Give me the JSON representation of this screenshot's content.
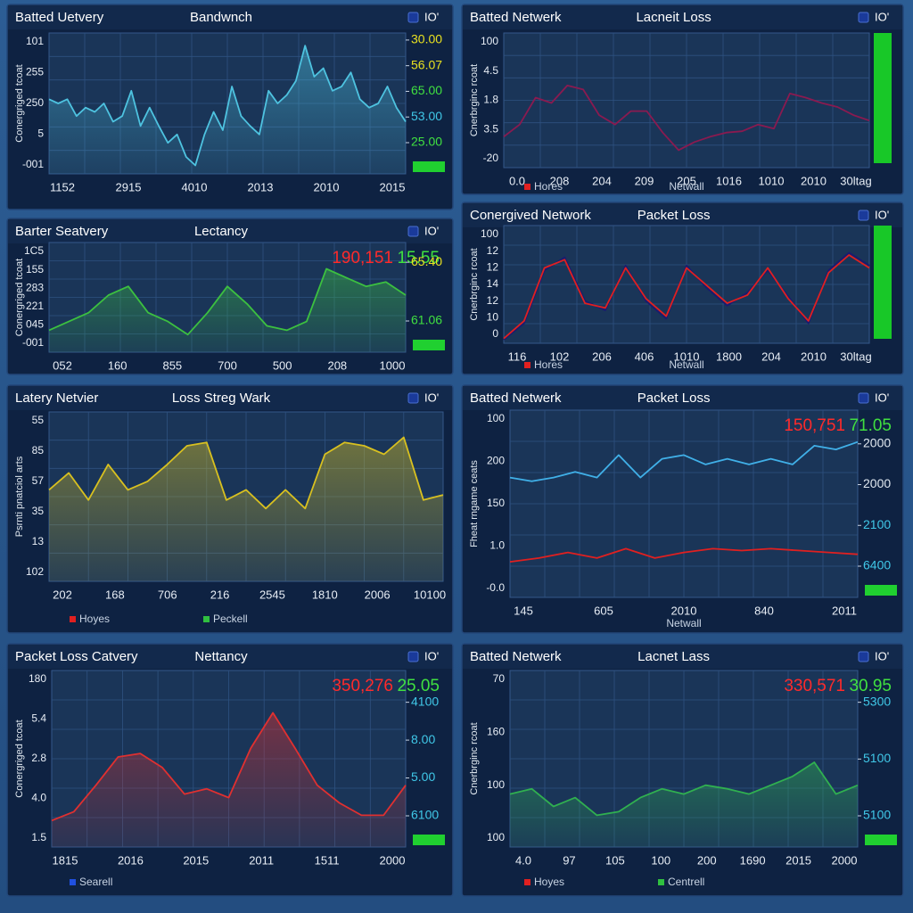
{
  "panels": [
    {
      "title": "Batted Uetvery",
      "subtitle": "Bandwnch",
      "icon": "IO'",
      "y_label": "Conergriged tcoat",
      "y_labels": [
        "101",
        "255",
        "250",
        "5",
        "-001"
      ],
      "x_labels": [
        "1152",
        "2915",
        "4010",
        "2013",
        "2010",
        "2015"
      ],
      "right_labels": [
        {
          "label": "30.00",
          "color": "#e8e020"
        },
        {
          "label": "56.07",
          "color": "#e8e020"
        },
        {
          "label": "65.00",
          "color": "#40e040"
        },
        {
          "label": "53.00",
          "color": "#40c8e8"
        },
        {
          "label": "25.00",
          "color": "#40e040"
        }
      ],
      "ylim": [
        0,
        100
      ],
      "series": [
        {
          "color": "#4ec3e0",
          "fill": true,
          "values": [
            53,
            50,
            53,
            41,
            47,
            44,
            50,
            37,
            41,
            59,
            34,
            47,
            34,
            22,
            28,
            12,
            6,
            28,
            44,
            31,
            62,
            41,
            34,
            28,
            59,
            50,
            56,
            66,
            91,
            69,
            75,
            59,
            62,
            72,
            53,
            47,
            50,
            62,
            47,
            37
          ]
        }
      ]
    },
    {
      "title": "Batted Netwerk",
      "subtitle": "Lacneit Loss",
      "icon": "IO'",
      "y_label": "Cnerbrginc rcoat",
      "y_labels": [
        "100",
        "4.5",
        "1.8",
        "3.5",
        "-20"
      ],
      "x_labels": [
        "0.0",
        "208",
        "204",
        "209",
        "205",
        "1016",
        "1010",
        "2010",
        "30ltag"
      ],
      "x_label": "Netwall",
      "legend": [
        {
          "name": "Hores",
          "color": "#e02020"
        }
      ],
      "ylim": [
        0,
        100
      ],
      "series": [
        {
          "color": "#8a1a50",
          "fill": false,
          "values": [
            23,
            32,
            52,
            48,
            61,
            58,
            39,
            32,
            42,
            42,
            26,
            13,
            19,
            23,
            26,
            27,
            32,
            29,
            55,
            52,
            48,
            45,
            39,
            35
          ]
        }
      ]
    },
    {
      "title": "Barter Seatvery",
      "subtitle": "Lectancy",
      "icon": "IO'",
      "y_label": "Conergriged tcoat",
      "y_labels": [
        "1C5",
        "155",
        "283",
        "221",
        "045",
        "-001"
      ],
      "x_labels": [
        "052",
        "160",
        "855",
        "700",
        "500",
        "208",
        "1000"
      ],
      "readouts": [
        {
          "label": "190,151",
          "color": "#ff2a2a"
        },
        {
          "label": "15.55",
          "color": "#40e040"
        }
      ],
      "right_labels": [
        {
          "label": "65.40",
          "color": "#e8e020"
        },
        {
          "label": "61.06",
          "color": "#40e040"
        }
      ],
      "ylim": [
        0,
        100
      ],
      "series": [
        {
          "color": "#3cc040",
          "fill": true,
          "values": [
            20,
            28,
            36,
            52,
            60,
            36,
            28,
            16,
            36,
            60,
            44,
            24,
            20,
            28,
            76,
            68,
            60,
            64,
            52
          ]
        }
      ]
    },
    {
      "title": "Conergived Network",
      "subtitle": "Packet Loss",
      "icon": "IO'",
      "y_label": "Cnerbrginc rcoat",
      "y_labels": [
        "100",
        "12",
        "12",
        "14",
        "12",
        "10",
        "0"
      ],
      "x_labels": [
        "116",
        "102",
        "206",
        "406",
        "1010",
        "1800",
        "204",
        "2010",
        "30ltag"
      ],
      "x_label": "Netwall",
      "legend": [
        {
          "name": "Hores",
          "color": "#e02020"
        }
      ],
      "ylim": [
        0,
        100
      ],
      "series": [
        {
          "color": "#1a1a70",
          "fill": false,
          "values": [
            3,
            17,
            62,
            73,
            36,
            28,
            66,
            36,
            21,
            66,
            47,
            32,
            43,
            62,
            40,
            17,
            62,
            77,
            66
          ]
        },
        {
          "color": "#e02020",
          "fill": false,
          "values": [
            4,
            19,
            64,
            71,
            34,
            30,
            64,
            38,
            23,
            64,
            49,
            34,
            41,
            64,
            38,
            19,
            60,
            75,
            64
          ]
        }
      ]
    },
    {
      "title": "Latery Netvier",
      "subtitle": "Loss Streg Wark",
      "icon": "IO'",
      "y_label": "Psrnti pnatciol arts",
      "y_labels": [
        "55",
        "85",
        "57",
        "35",
        "13",
        "102"
      ],
      "x_labels": [
        "202",
        "168",
        "706",
        "216",
        "2545",
        "1810",
        "2006",
        "10100"
      ],
      "legend": [
        {
          "name": "Hoyes",
          "color": "#e02020"
        },
        {
          "name": "Peckell",
          "color": "#30c040"
        }
      ],
      "ylim": [
        0,
        100
      ],
      "series": [
        {
          "color": "#d8c020",
          "fill": true,
          "values": [
            54,
            64,
            48,
            69,
            54,
            59,
            69,
            80,
            82,
            48,
            54,
            43,
            54,
            43,
            75,
            82,
            80,
            75,
            85,
            48,
            51
          ]
        }
      ]
    },
    {
      "title": "Batted Netwerk",
      "subtitle": "Packet Loss",
      "icon": "IO'",
      "y_label": "Fheat rngame ceats",
      "y_labels": [
        "100",
        "200",
        "150",
        "1.0",
        "-0.0"
      ],
      "x_labels": [
        "145",
        "605",
        "2010",
        "840",
        "2011"
      ],
      "x_label": "Netwall",
      "readouts": [
        {
          "label": "150,751",
          "color": "#ff2a2a"
        },
        {
          "label": "71.05",
          "color": "#40e040"
        }
      ],
      "right_labels": [
        {
          "label": "2000",
          "color": "#e0e8f0"
        },
        {
          "label": "2000",
          "color": "#e0e8f0"
        },
        {
          "label": "2100",
          "color": "#40c8e8"
        },
        {
          "label": "6400",
          "color": "#40c8e8"
        }
      ],
      "ylim": [
        0,
        100
      ],
      "series": [
        {
          "color": "#40b0e8",
          "fill": false,
          "values": [
            64,
            62,
            64,
            67,
            64,
            76,
            64,
            74,
            76,
            71,
            74,
            71,
            74,
            71,
            81,
            79,
            83
          ]
        },
        {
          "color": "#e02020",
          "fill": false,
          "values": [
            19,
            21,
            24,
            21,
            26,
            21,
            24,
            26,
            25,
            26,
            25,
            24,
            23
          ]
        }
      ]
    },
    {
      "title": "Packet Loss Catvery",
      "subtitle": "Nettancy",
      "icon": "IO'",
      "y_label": "Conergriged tcoat",
      "y_labels": [
        "180",
        "5.4",
        "2.8",
        "4.0",
        "1.5"
      ],
      "x_labels": [
        "1815",
        "2016",
        "2015",
        "2011",
        "1511",
        "2000"
      ],
      "legend": [
        {
          "name": "Searell",
          "color": "#2050e0"
        }
      ],
      "readouts": [
        {
          "label": "350,276",
          "color": "#ff2a2a"
        },
        {
          "label": "25.05",
          "color": "#40e040"
        }
      ],
      "right_labels": [
        {
          "label": "4100",
          "color": "#40c8e8"
        },
        {
          "label": "8.00",
          "color": "#40c8e8"
        },
        {
          "label": "5.00",
          "color": "#40c8e8"
        },
        {
          "label": "6100",
          "color": "#40c8e8"
        }
      ],
      "ylim": [
        0,
        100
      ],
      "series": [
        {
          "color": "#e03030",
          "fill": true,
          "values": [
            15,
            20,
            35,
            51,
            53,
            45,
            30,
            33,
            28,
            56,
            76,
            56,
            35,
            25,
            18,
            18,
            35
          ]
        }
      ]
    },
    {
      "title": "Batted Netwerk",
      "subtitle": "Lacnet Lass",
      "icon": "IO'",
      "y_label": "Cnerbrginc rcoat",
      "y_labels": [
        "70",
        "160",
        "100",
        "100"
      ],
      "x_labels": [
        "4.0",
        "97",
        "105",
        "100",
        "200",
        "1690",
        "2015",
        "2000"
      ],
      "legend": [
        {
          "name": "Hoyes",
          "color": "#e02020"
        },
        {
          "name": "Centrell",
          "color": "#30c040"
        }
      ],
      "readouts": [
        {
          "label": "330,571",
          "color": "#ff2a2a"
        },
        {
          "label": "30.95",
          "color": "#40e040"
        }
      ],
      "right_labels": [
        {
          "label": "5300",
          "color": "#40c8e8"
        },
        {
          "label": "5100",
          "color": "#40c8e8"
        },
        {
          "label": "5100",
          "color": "#40c8e8"
        }
      ],
      "ylim": [
        0,
        100
      ],
      "series": [
        {
          "color": "#30b050",
          "fill": true,
          "values": [
            30,
            33,
            23,
            28,
            18,
            20,
            28,
            33,
            30,
            35,
            33,
            30,
            35,
            40,
            48,
            30,
            35
          ]
        }
      ]
    }
  ]
}
